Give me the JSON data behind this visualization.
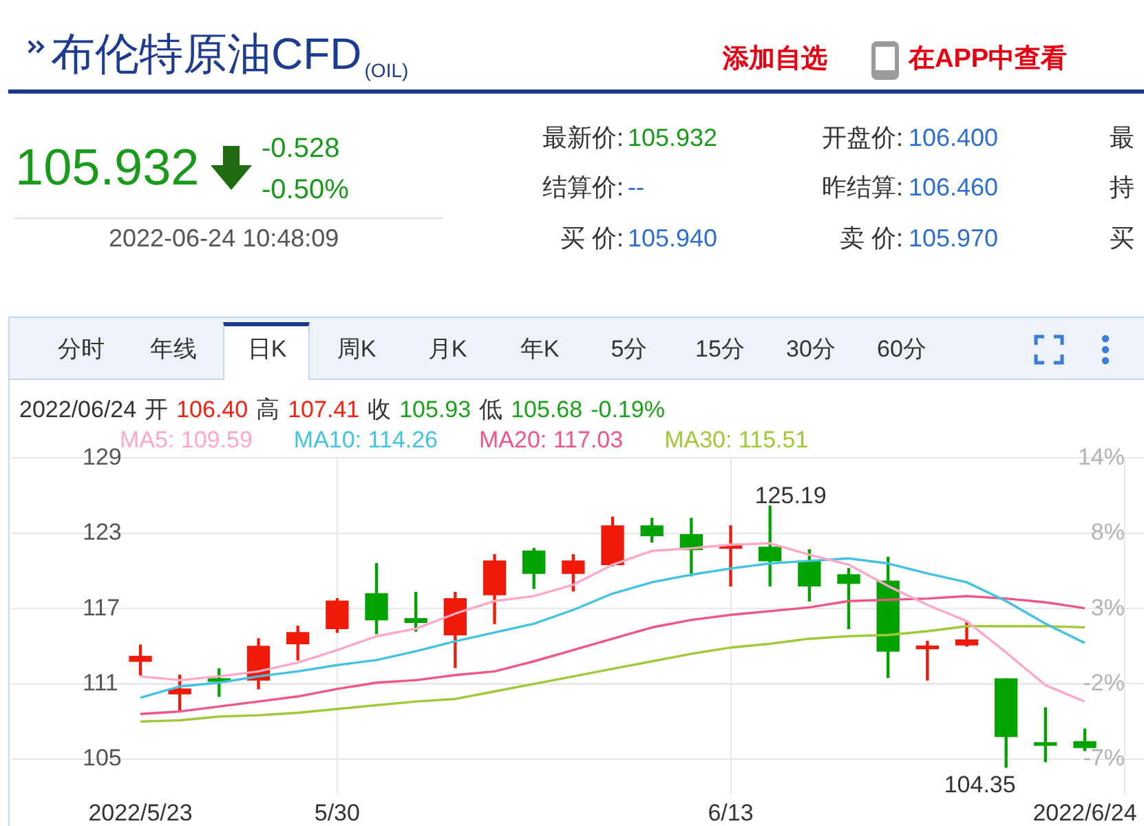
{
  "chart_data": {
    "type": "candlestick",
    "title": "布伦特原油CFD$_{(OIL)}$",
    "categories": [
      "2022/5/23",
      null,
      null,
      null,
      null,
      "5/30",
      null,
      null,
      null,
      null,
      null,
      null,
      null,
      null,
      null,
      "6/13",
      null,
      null,
      null,
      null,
      null,
      null,
      null,
      null,
      "2022/6/24"
    ],
    "ohlc": [
      [
        112.8,
        114.1,
        111.7,
        113.2
      ],
      [
        110.2,
        111.7,
        108.9,
        110.6
      ],
      [
        111.3,
        112.2,
        110.0,
        111.2
      ],
      [
        111.3,
        114.6,
        110.6,
        114.0
      ],
      [
        114.2,
        115.6,
        112.9,
        115.1
      ],
      [
        115.4,
        117.8,
        115.1,
        117.6
      ],
      [
        118.2,
        120.6,
        115.0,
        116.1
      ],
      [
        116.2,
        118.3,
        115.2,
        115.9
      ],
      [
        114.9,
        118.3,
        112.3,
        117.8
      ],
      [
        118.1,
        121.3,
        115.8,
        120.8
      ],
      [
        121.6,
        121.8,
        118.6,
        119.8
      ],
      [
        119.8,
        121.3,
        118.4,
        120.8
      ],
      [
        120.5,
        124.3,
        120.4,
        123.6
      ],
      [
        123.6,
        124.2,
        122.3,
        122.8
      ],
      [
        122.9,
        124.2,
        119.6,
        121.7
      ],
      [
        121.8,
        123.6,
        118.8,
        121.9
      ],
      [
        121.9,
        125.19,
        118.8,
        120.8
      ],
      [
        120.8,
        121.7,
        117.6,
        118.8
      ],
      [
        119.7,
        120.2,
        115.4,
        119.0
      ],
      [
        119.2,
        121.1,
        111.5,
        113.6
      ],
      [
        113.8,
        114.4,
        111.3,
        114.0
      ],
      [
        114.1,
        116.0,
        114.0,
        114.5
      ],
      [
        111.4,
        111.4,
        104.35,
        106.8
      ],
      [
        106.3,
        109.1,
        104.8,
        106.1
      ],
      [
        106.4,
        107.41,
        105.68,
        105.93
      ]
    ],
    "colors": [
      "#f01a0a",
      "#f01a0a",
      "#00a300",
      "#f01a0a",
      "#f01a0a",
      "#f01a0a",
      "#00a300",
      "#00a300",
      "#f01a0a",
      "#f01a0a",
      "#00a300",
      "#f01a0a",
      "#f01a0a",
      "#00a300",
      "#00a300",
      "#f01a0a",
      "#00a300",
      "#00a300",
      "#00a300",
      "#00a300",
      "#f01a0a",
      "#f01a0a",
      "#00a300",
      "#00a300",
      "#00a300"
    ],
    "series": [
      {
        "name": "MA5: 109.59",
        "type": "line",
        "color": "#ffa8c6",
        "values": [
          111.6,
          111.3,
          111.6,
          112.0,
          112.7,
          113.7,
          114.8,
          115.4,
          116.6,
          117.6,
          118.0,
          118.9,
          120.5,
          121.6,
          121.8,
          122.1,
          122.2,
          121.3,
          120.5,
          118.8,
          117.3,
          116.0,
          113.5,
          110.9,
          109.59
        ]
      },
      {
        "name": "MA10: 114.26",
        "type": "line",
        "color": "#41c3e1",
        "values": [
          109.9,
          110.8,
          111.1,
          111.6,
          112.0,
          112.5,
          112.9,
          113.6,
          114.4,
          115.1,
          115.8,
          116.9,
          118.2,
          119.1,
          119.7,
          120.2,
          120.6,
          120.8,
          121.0,
          120.6,
          119.8,
          119.1,
          117.6,
          115.8,
          114.26
        ]
      },
      {
        "name": "MA20: 117.03",
        "type": "line",
        "color": "#f05587",
        "values": [
          108.6,
          108.8,
          109.2,
          109.6,
          110.0,
          110.6,
          111.1,
          111.3,
          111.7,
          112.0,
          112.8,
          113.7,
          114.6,
          115.5,
          116.1,
          116.5,
          116.8,
          117.1,
          117.6,
          117.7,
          117.8,
          118.0,
          117.8,
          117.5,
          117.03
        ]
      },
      {
        "name": "MA30: 115.51",
        "type": "line",
        "color": "#a0c837",
        "values": [
          108.0,
          108.1,
          108.4,
          108.5,
          108.7,
          109.0,
          109.3,
          109.6,
          109.8,
          110.4,
          111.0,
          111.6,
          112.2,
          112.8,
          113.4,
          113.9,
          114.2,
          114.6,
          114.8,
          114.9,
          115.2,
          115.6,
          115.6,
          115.6,
          115.51
        ]
      }
    ],
    "ylim": [
      102.2,
      129
    ],
    "yticks": [
      105,
      111,
      117,
      123,
      129
    ],
    "y2lim": [
      -9.96,
      13.66
    ],
    "y2ticks": [
      {
        "value": -7.49,
        "label": "-7%"
      },
      {
        "value": -2.2,
        "label": "-2%"
      },
      {
        "value": 3.08,
        "label": "3%"
      },
      {
        "value": 8.37,
        "label": "8%"
      },
      {
        "value": 13.66,
        "label": "14%"
      }
    ],
    "grid": true,
    "annotations": [
      "添加自选",
      "在APP中查看",
      "105.932",
      "-0.528",
      "-0.50%",
      "2022-06-24 10:48:09",
      "最新价:",
      "105.932",
      "开盘价:",
      "106.400",
      "最",
      "结算价:",
      "--",
      "昨结算:",
      "106.460",
      "持",
      "买 价:",
      "105.940",
      "卖 价:",
      "105.970",
      "买",
      "分时",
      "年线",
      "日K",
      "周K",
      "月K",
      "年K",
      "5分",
      "15分",
      "30分",
      "60分",
      "2022/06/24",
      "开",
      "106.40",
      "高",
      "107.41",
      "收",
      "105.93",
      "低",
      "105.68",
      "-0.19%",
      "125.19",
      "104.35"
    ]
  }
}
